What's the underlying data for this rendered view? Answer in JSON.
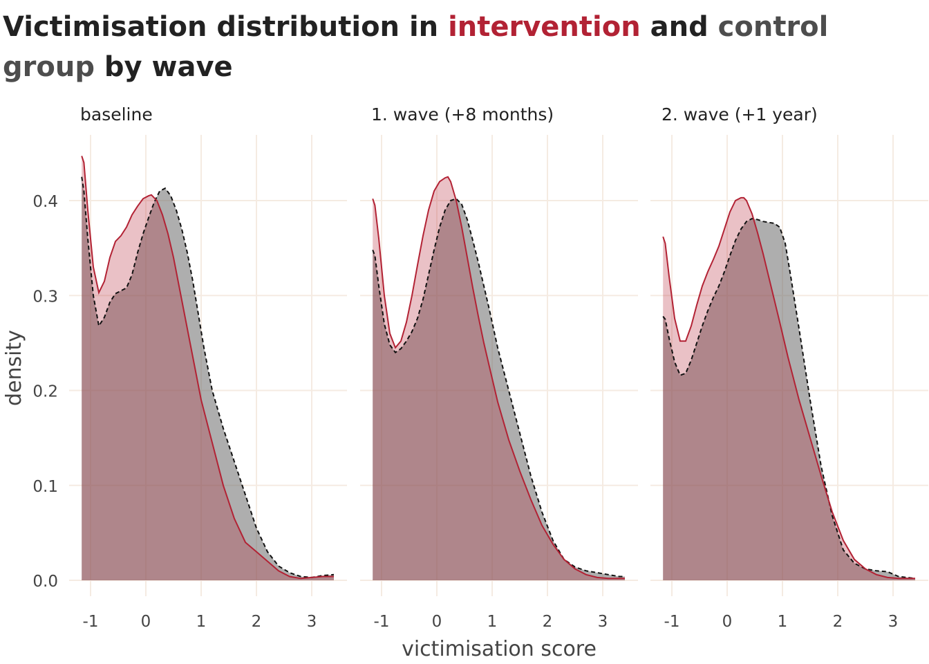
{
  "title": {
    "prefix": "Victimisation distribution in ",
    "intervention": "intervention",
    "middle": " and ",
    "control": "control group",
    "suffix": " by wave"
  },
  "colors": {
    "intervention": "#b22234",
    "intervention_fill": "#b22234",
    "control_fill": "#6b6b6b",
    "grid": "#f5ebe2",
    "text": "#444444"
  },
  "chart_data": {
    "type": "area",
    "xlabel": "victimisation score",
    "ylabel": "density",
    "xlim": [
      -1.4,
      3.5
    ],
    "ylim": [
      0,
      0.46
    ],
    "x_ticks": [
      -1,
      0,
      1,
      2,
      3
    ],
    "y_ticks": [
      0.0,
      0.1,
      0.2,
      0.3,
      0.4
    ],
    "y_tick_labels": [
      "0.0",
      "0.1",
      "0.2",
      "0.3",
      "0.4"
    ],
    "grid": true,
    "legend": "none",
    "panels": [
      {
        "label": "baseline",
        "series": [
          {
            "name": "intervention",
            "x": [
              -1.16,
              -1.12,
              -1.05,
              -0.95,
              -0.85,
              -0.75,
              -0.65,
              -0.55,
              -0.45,
              -0.35,
              -0.25,
              -0.15,
              -0.05,
              0.05,
              0.1,
              0.2,
              0.3,
              0.4,
              0.5,
              0.6,
              0.7,
              0.8,
              0.9,
              1.0,
              1.2,
              1.4,
              1.6,
              1.8,
              2.0,
              2.2,
              2.4,
              2.6,
              2.8,
              3.0,
              3.2,
              3.4
            ],
            "y": [
              0.447,
              0.44,
              0.39,
              0.33,
              0.303,
              0.315,
              0.34,
              0.357,
              0.363,
              0.372,
              0.385,
              0.394,
              0.402,
              0.405,
              0.406,
              0.4,
              0.385,
              0.365,
              0.34,
              0.31,
              0.28,
              0.25,
              0.22,
              0.19,
              0.145,
              0.1,
              0.065,
              0.04,
              0.03,
              0.02,
              0.01,
              0.004,
              0.002,
              0.003,
              0.004,
              0.004
            ]
          },
          {
            "name": "control",
            "x": [
              -1.16,
              -1.12,
              -1.05,
              -0.95,
              -0.85,
              -0.75,
              -0.65,
              -0.55,
              -0.45,
              -0.35,
              -0.25,
              -0.15,
              -0.05,
              0.05,
              0.15,
              0.25,
              0.35,
              0.45,
              0.55,
              0.65,
              0.75,
              0.85,
              0.95,
              1.05,
              1.2,
              1.4,
              1.6,
              1.8,
              2.0,
              2.2,
              2.4,
              2.6,
              2.8,
              3.0,
              3.2,
              3.4
            ],
            "y": [
              0.425,
              0.41,
              0.36,
              0.3,
              0.268,
              0.277,
              0.293,
              0.302,
              0.305,
              0.308,
              0.322,
              0.345,
              0.365,
              0.382,
              0.398,
              0.41,
              0.413,
              0.405,
              0.39,
              0.37,
              0.345,
              0.315,
              0.28,
              0.245,
              0.2,
              0.16,
              0.125,
              0.09,
              0.055,
              0.03,
              0.015,
              0.008,
              0.004,
              0.003,
              0.005,
              0.006
            ]
          }
        ]
      },
      {
        "label": "1. wave (+8 months)",
        "series": [
          {
            "name": "intervention",
            "x": [
              -1.16,
              -1.12,
              -1.05,
              -0.95,
              -0.85,
              -0.75,
              -0.65,
              -0.55,
              -0.45,
              -0.35,
              -0.25,
              -0.15,
              -0.05,
              0.05,
              0.15,
              0.2,
              0.25,
              0.35,
              0.45,
              0.55,
              0.65,
              0.75,
              0.85,
              0.95,
              1.1,
              1.3,
              1.5,
              1.7,
              1.9,
              2.1,
              2.3,
              2.5,
              2.7,
              2.9,
              3.1,
              3.4
            ],
            "y": [
              0.402,
              0.395,
              0.36,
              0.3,
              0.26,
              0.245,
              0.252,
              0.272,
              0.3,
              0.332,
              0.363,
              0.39,
              0.41,
              0.42,
              0.424,
              0.425,
              0.42,
              0.4,
              0.372,
              0.34,
              0.308,
              0.278,
              0.25,
              0.225,
              0.188,
              0.148,
              0.115,
              0.085,
              0.058,
              0.038,
              0.022,
              0.012,
              0.006,
              0.003,
              0.002,
              0.002
            ]
          },
          {
            "name": "control",
            "x": [
              -1.16,
              -1.12,
              -1.05,
              -0.95,
              -0.85,
              -0.75,
              -0.65,
              -0.55,
              -0.45,
              -0.35,
              -0.25,
              -0.15,
              -0.05,
              0.05,
              0.15,
              0.25,
              0.35,
              0.45,
              0.55,
              0.65,
              0.75,
              0.85,
              0.95,
              1.1,
              1.3,
              1.5,
              1.7,
              1.9,
              2.1,
              2.3,
              2.5,
              2.7,
              2.9,
              3.1,
              3.3,
              3.4
            ],
            "y": [
              0.348,
              0.342,
              0.31,
              0.27,
              0.248,
              0.24,
              0.244,
              0.252,
              0.262,
              0.276,
              0.296,
              0.322,
              0.348,
              0.372,
              0.39,
              0.4,
              0.402,
              0.396,
              0.38,
              0.358,
              0.335,
              0.31,
              0.285,
              0.245,
              0.2,
              0.155,
              0.11,
              0.072,
              0.042,
              0.022,
              0.014,
              0.01,
              0.008,
              0.006,
              0.004,
              0.004
            ]
          }
        ]
      },
      {
        "label": "2. wave (+1 year)",
        "series": [
          {
            "name": "intervention",
            "x": [
              -1.16,
              -1.12,
              -1.05,
              -0.95,
              -0.85,
              -0.75,
              -0.65,
              -0.55,
              -0.45,
              -0.35,
              -0.25,
              -0.15,
              -0.05,
              0.05,
              0.15,
              0.25,
              0.3,
              0.35,
              0.45,
              0.55,
              0.65,
              0.75,
              0.85,
              0.95,
              1.1,
              1.3,
              1.5,
              1.7,
              1.9,
              2.1,
              2.3,
              2.5,
              2.7,
              2.9,
              3.1,
              3.4
            ],
            "y": [
              0.362,
              0.355,
              0.32,
              0.276,
              0.252,
              0.252,
              0.268,
              0.29,
              0.31,
              0.325,
              0.338,
              0.352,
              0.37,
              0.388,
              0.4,
              0.403,
              0.403,
              0.4,
              0.386,
              0.366,
              0.344,
              0.32,
              0.296,
              0.272,
              0.235,
              0.19,
              0.15,
              0.11,
              0.072,
              0.042,
              0.022,
              0.012,
              0.006,
              0.003,
              0.002,
              0.002
            ]
          },
          {
            "name": "control",
            "x": [
              -1.16,
              -1.12,
              -1.05,
              -0.95,
              -0.85,
              -0.75,
              -0.65,
              -0.55,
              -0.45,
              -0.35,
              -0.25,
              -0.15,
              -0.05,
              0.05,
              0.15,
              0.25,
              0.35,
              0.45,
              0.55,
              0.65,
              0.75,
              0.85,
              0.95,
              1.05,
              1.15,
              1.3,
              1.5,
              1.7,
              1.9,
              2.1,
              2.3,
              2.5,
              2.7,
              2.9,
              3.1,
              3.4
            ],
            "y": [
              0.278,
              0.275,
              0.255,
              0.23,
              0.216,
              0.218,
              0.232,
              0.25,
              0.268,
              0.284,
              0.298,
              0.31,
              0.325,
              0.342,
              0.358,
              0.37,
              0.378,
              0.381,
              0.38,
              0.378,
              0.377,
              0.376,
              0.372,
              0.355,
              0.32,
              0.265,
              0.19,
              0.12,
              0.068,
              0.032,
              0.018,
              0.012,
              0.01,
              0.009,
              0.004,
              0.002
            ]
          }
        ]
      }
    ]
  }
}
